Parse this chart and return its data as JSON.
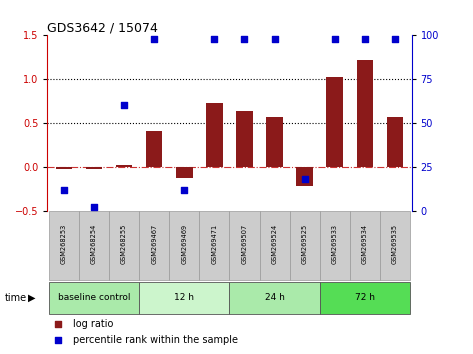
{
  "title": "GDS3642 / 15074",
  "categories": [
    "GSM268253",
    "GSM268254",
    "GSM268255",
    "GSM269467",
    "GSM269469",
    "GSM269471",
    "GSM269507",
    "GSM269524",
    "GSM269525",
    "GSM269533",
    "GSM269534",
    "GSM269535"
  ],
  "log_ratio": [
    -0.03,
    -0.02,
    0.02,
    0.41,
    -0.13,
    0.73,
    0.64,
    0.57,
    -0.22,
    1.03,
    1.22,
    0.57
  ],
  "percentile_rank": [
    12,
    2,
    60,
    98,
    12,
    98,
    98,
    98,
    18,
    98,
    98,
    98
  ],
  "bar_color": "#8b1a1a",
  "dot_color": "#0000cc",
  "ylim_left": [
    -0.5,
    1.5
  ],
  "ylim_right": [
    0,
    100
  ],
  "yticks_left": [
    -0.5,
    0.0,
    0.5,
    1.0,
    1.5
  ],
  "yticks_right": [
    0,
    25,
    50,
    75,
    100
  ],
  "hlines": [
    0.0,
    0.5,
    1.0
  ],
  "hline_styles": [
    "dashdot",
    "dotted",
    "dotted"
  ],
  "hline_colors": [
    "#cc3333",
    "#000000",
    "#000000"
  ],
  "time_groups": [
    {
      "label": "baseline control",
      "start": 0,
      "end": 3,
      "color": "#aaeaaa"
    },
    {
      "label": "12 h",
      "start": 3,
      "end": 6,
      "color": "#ccf5cc"
    },
    {
      "label": "24 h",
      "start": 6,
      "end": 9,
      "color": "#aaeaaa"
    },
    {
      "label": "72 h",
      "start": 9,
      "end": 12,
      "color": "#55dd55"
    }
  ],
  "time_label": "time",
  "legend_bar_label": "log ratio",
  "legend_dot_label": "percentile rank within the sample",
  "background_color": "#ffffff",
  "tick_label_bg": "#cccccc",
  "tick_label_border": "#999999"
}
